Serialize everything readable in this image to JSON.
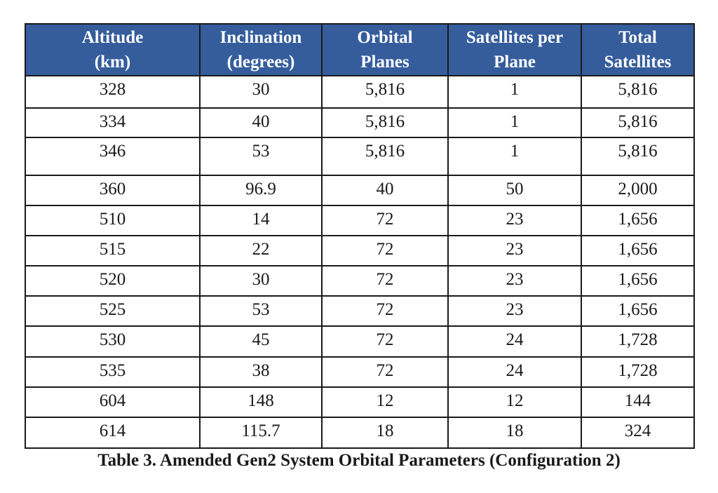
{
  "table": {
    "columns": [
      {
        "line1": "Altitude",
        "line2": "(km)"
      },
      {
        "line1": "Inclination",
        "line2": "(degrees)"
      },
      {
        "line1": "Orbital",
        "line2": "Planes"
      },
      {
        "line1": "Satellites per",
        "line2": "Plane"
      },
      {
        "line1": "Total",
        "line2": "Satellites"
      }
    ],
    "rows": [
      [
        "328",
        "30",
        "5,816",
        "1",
        "5,816"
      ],
      [
        "334",
        "40",
        "5,816",
        "1",
        "5,816"
      ],
      [
        "346",
        "53",
        "5,816",
        "1",
        "5,816"
      ],
      [
        "360",
        "96.9",
        "40",
        "50",
        "2,000"
      ],
      [
        "510",
        "14",
        "72",
        "23",
        "1,656"
      ],
      [
        "515",
        "22",
        "72",
        "23",
        "1,656"
      ],
      [
        "520",
        "30",
        "72",
        "23",
        "1,656"
      ],
      [
        "525",
        "53",
        "72",
        "23",
        "1,656"
      ],
      [
        "530",
        "45",
        "72",
        "24",
        "1,728"
      ],
      [
        "535",
        "38",
        "72",
        "24",
        "1,728"
      ],
      [
        "604",
        "148",
        "12",
        "12",
        "144"
      ],
      [
        "614",
        "115.7",
        "18",
        "18",
        "324"
      ]
    ]
  },
  "caption": "Table 3.  Amended Gen2 System Orbital Parameters (Configuration 2)",
  "colors": {
    "header_background": "#355d9c",
    "header_text": "#ffffff"
  }
}
